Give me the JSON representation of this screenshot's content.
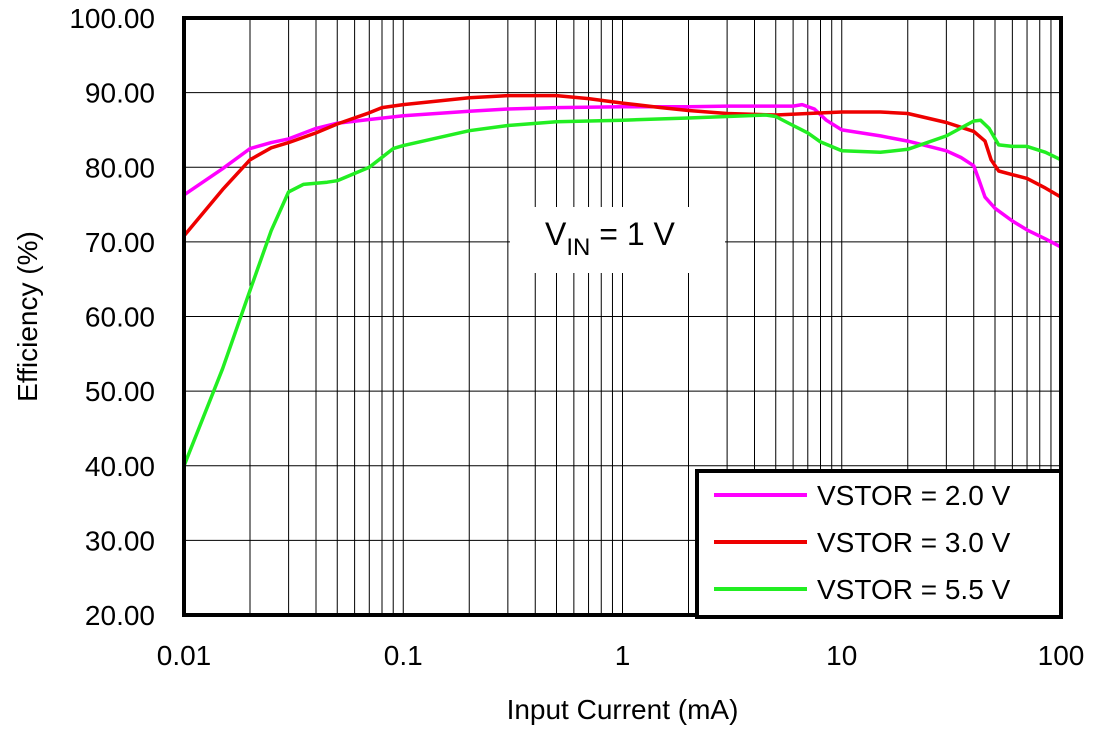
{
  "chart_data": {
    "type": "line",
    "xscale": "log",
    "xlim": [
      0.01,
      100
    ],
    "ylim": [
      20,
      100
    ],
    "grid": true,
    "xlabel": "Input Current (mA)",
    "ylabel": "Efficiency (%)",
    "x_tick_labels": [
      "0.01",
      "0.1",
      "1",
      "10",
      "100"
    ],
    "y_tick_labels": [
      "20.00",
      "30.00",
      "40.00",
      "50.00",
      "60.00",
      "70.00",
      "80.00",
      "90.00",
      "100.00"
    ],
    "annotation": {
      "main": "V",
      "sub": "IN",
      "rest": " = 1 V"
    },
    "legend_position": "bottom-right",
    "series": [
      {
        "name": "VSTOR = 2.0 V",
        "color": "#ff00ff",
        "points": [
          [
            0.01,
            76.3
          ],
          [
            0.015,
            79.8
          ],
          [
            0.02,
            82.5
          ],
          [
            0.025,
            83.3
          ],
          [
            0.03,
            83.8
          ],
          [
            0.04,
            85.2
          ],
          [
            0.05,
            85.9
          ],
          [
            0.07,
            86.4
          ],
          [
            0.1,
            86.9
          ],
          [
            0.2,
            87.5
          ],
          [
            0.3,
            87.8
          ],
          [
            0.5,
            88.0
          ],
          [
            1,
            88.1
          ],
          [
            2,
            88.1
          ],
          [
            3,
            88.2
          ],
          [
            5,
            88.2
          ],
          [
            6,
            88.2
          ],
          [
            6.6,
            88.4
          ],
          [
            7.5,
            87.8
          ],
          [
            8.5,
            86.3
          ],
          [
            10,
            85.0
          ],
          [
            15,
            84.2
          ],
          [
            20,
            83.5
          ],
          [
            30,
            82.2
          ],
          [
            35,
            81.3
          ],
          [
            40,
            80.2
          ],
          [
            42,
            78.5
          ],
          [
            45,
            76.0
          ],
          [
            50,
            74.5
          ],
          [
            60,
            72.8
          ],
          [
            70,
            71.6
          ],
          [
            85,
            70.4
          ],
          [
            100,
            69.3
          ]
        ]
      },
      {
        "name": "VSTOR = 3.0 V",
        "color": "#ee0000",
        "points": [
          [
            0.01,
            70.8
          ],
          [
            0.015,
            77.0
          ],
          [
            0.02,
            81.0
          ],
          [
            0.025,
            82.6
          ],
          [
            0.03,
            83.3
          ],
          [
            0.04,
            84.6
          ],
          [
            0.05,
            85.8
          ],
          [
            0.07,
            87.3
          ],
          [
            0.08,
            88.0
          ],
          [
            0.1,
            88.4
          ],
          [
            0.2,
            89.3
          ],
          [
            0.3,
            89.6
          ],
          [
            0.5,
            89.6
          ],
          [
            0.7,
            89.2
          ],
          [
            1,
            88.6
          ],
          [
            1.5,
            88.0
          ],
          [
            2,
            87.6
          ],
          [
            3,
            87.2
          ],
          [
            5,
            87.0
          ],
          [
            7,
            87.2
          ],
          [
            10,
            87.4
          ],
          [
            15,
            87.4
          ],
          [
            20,
            87.2
          ],
          [
            30,
            86.0
          ],
          [
            40,
            84.8
          ],
          [
            45,
            83.5
          ],
          [
            48,
            81.0
          ],
          [
            52,
            79.5
          ],
          [
            60,
            79.0
          ],
          [
            70,
            78.5
          ],
          [
            85,
            77.2
          ],
          [
            100,
            76.0
          ]
        ]
      },
      {
        "name": "VSTOR = 5.5 V",
        "color": "#22ee22",
        "points": [
          [
            0.01,
            40.0
          ],
          [
            0.015,
            53.0
          ],
          [
            0.02,
            63.5
          ],
          [
            0.025,
            71.5
          ],
          [
            0.03,
            76.7
          ],
          [
            0.035,
            77.7
          ],
          [
            0.045,
            78.0
          ],
          [
            0.05,
            78.2
          ],
          [
            0.07,
            80.0
          ],
          [
            0.09,
            82.5
          ],
          [
            0.1,
            82.9
          ],
          [
            0.2,
            84.9
          ],
          [
            0.3,
            85.6
          ],
          [
            0.5,
            86.1
          ],
          [
            1,
            86.3
          ],
          [
            2,
            86.6
          ],
          [
            3,
            86.8
          ],
          [
            4.5,
            87.0
          ],
          [
            5,
            86.8
          ],
          [
            6,
            85.6
          ],
          [
            7,
            84.6
          ],
          [
            8,
            83.4
          ],
          [
            10,
            82.2
          ],
          [
            15,
            82.0
          ],
          [
            20,
            82.4
          ],
          [
            30,
            84.2
          ],
          [
            40,
            86.2
          ],
          [
            43,
            86.3
          ],
          [
            47,
            85.2
          ],
          [
            52,
            83.0
          ],
          [
            60,
            82.8
          ],
          [
            70,
            82.8
          ],
          [
            85,
            82.0
          ],
          [
            100,
            81.0
          ]
        ]
      }
    ]
  }
}
